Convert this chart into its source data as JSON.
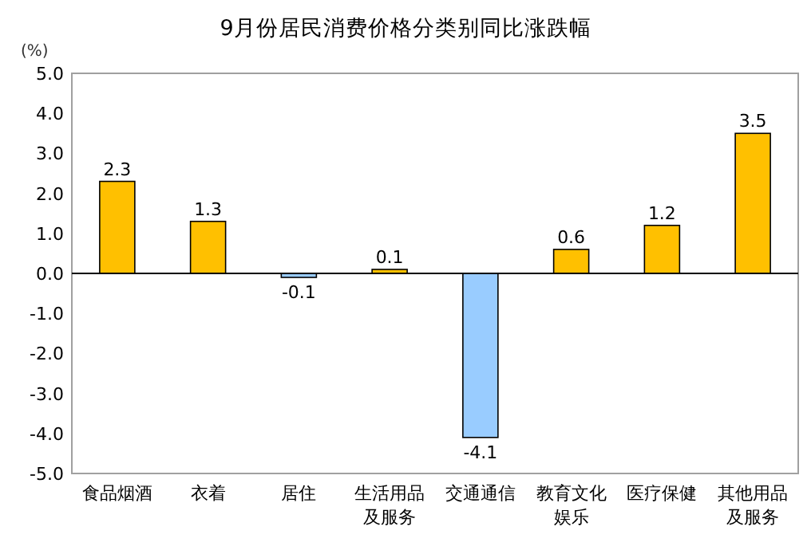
{
  "chart_data": {
    "type": "bar",
    "title": "9月份居民消费价格分类别同比涨跌幅",
    "ylabel": "(%)",
    "categories": [
      "食品烟酒",
      "衣着",
      "居住",
      "生活用品及服务",
      "交通通信",
      "教育文化娱乐",
      "医疗保健",
      "其他用品及服务"
    ],
    "values": [
      2.3,
      1.3,
      -0.1,
      0.1,
      -4.1,
      0.6,
      1.2,
      3.5
    ],
    "colors": [
      "#ffc000",
      "#ffc000",
      "#99ccff",
      "#ffc000",
      "#99ccff",
      "#ffc000",
      "#ffc000",
      "#ffc000"
    ],
    "ylim": [
      -5,
      5
    ],
    "yticks": [
      {
        "value": 5,
        "label": "5.0"
      },
      {
        "value": 4,
        "label": "4.0"
      },
      {
        "value": 3,
        "label": "3.0"
      },
      {
        "value": 2,
        "label": "2.0"
      },
      {
        "value": 1,
        "label": "1.0"
      },
      {
        "value": 0,
        "label": "0.0"
      },
      {
        "value": -1,
        "label": "-1.0"
      },
      {
        "value": -2,
        "label": "-2.0"
      },
      {
        "value": -3,
        "label": "-3.0"
      },
      {
        "value": -4,
        "label": "-4.0"
      },
      {
        "value": -5,
        "label": "-5.0"
      }
    ],
    "data_labels": true
  }
}
